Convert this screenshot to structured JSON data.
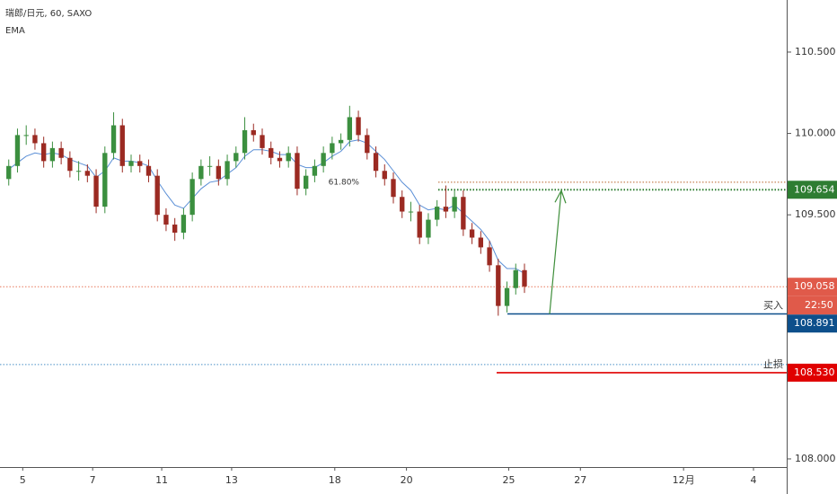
{
  "chart_data": {
    "type": "candlestick",
    "title": "瑞郎/日元, 60, SAXO",
    "indicator": "EMA",
    "x": [
      1,
      2,
      3,
      4,
      5,
      6,
      7,
      8,
      9,
      10,
      11,
      12,
      13,
      14,
      15,
      16,
      17,
      18,
      19,
      20,
      21,
      22,
      23,
      24,
      25,
      26,
      27,
      28,
      29,
      30,
      31,
      32,
      33,
      34,
      35,
      36,
      37,
      38,
      39,
      40,
      41,
      42,
      43,
      44,
      45,
      46,
      47,
      48,
      49,
      50,
      51,
      52,
      53,
      54,
      55,
      56,
      57,
      58,
      59,
      60
    ],
    "open": [
      109.72,
      109.8,
      109.99,
      109.99,
      109.94,
      109.83,
      109.91,
      109.85,
      109.77,
      109.77,
      109.74,
      109.55,
      109.88,
      110.05,
      109.8,
      109.83,
      109.8,
      109.74,
      109.5,
      109.44,
      109.39,
      109.5,
      109.72,
      109.8,
      109.8,
      109.72,
      109.83,
      109.88,
      110.02,
      109.99,
      109.91,
      109.85,
      109.83,
      109.88,
      109.66,
      109.74,
      109.8,
      109.88,
      109.94,
      109.96,
      110.1,
      109.99,
      109.88,
      109.77,
      109.72,
      109.61,
      109.52,
      109.52,
      109.36,
      109.47,
      109.55,
      109.52,
      109.61,
      109.41,
      109.36,
      109.3,
      109.19,
      108.94,
      109.05,
      109.16
    ],
    "high": [
      109.84,
      110.03,
      110.05,
      110.03,
      109.98,
      109.95,
      109.95,
      109.89,
      109.83,
      109.81,
      109.78,
      109.92,
      110.13,
      110.09,
      109.87,
      109.87,
      109.84,
      109.78,
      109.54,
      109.48,
      109.54,
      109.76,
      109.84,
      109.86,
      109.84,
      109.87,
      109.92,
      110.1,
      110.06,
      110.03,
      109.95,
      109.89,
      109.92,
      109.92,
      109.78,
      109.84,
      109.92,
      109.98,
      110.0,
      110.17,
      110.14,
      110.03,
      109.92,
      109.81,
      109.76,
      109.65,
      109.58,
      109.56,
      109.51,
      109.59,
      109.68,
      109.65,
      109.65,
      109.45,
      109.4,
      109.34,
      109.23,
      109.09,
      109.2,
      109.2
    ],
    "low": [
      109.68,
      109.76,
      109.93,
      109.9,
      109.79,
      109.79,
      109.81,
      109.73,
      109.71,
      109.7,
      109.51,
      109.51,
      109.84,
      109.76,
      109.76,
      109.76,
      109.7,
      109.46,
      109.4,
      109.34,
      109.35,
      109.46,
      109.68,
      109.74,
      109.68,
      109.68,
      109.79,
      109.84,
      109.95,
      109.87,
      109.81,
      109.79,
      109.79,
      109.62,
      109.62,
      109.7,
      109.76,
      109.84,
      109.9,
      109.92,
      109.95,
      109.84,
      109.73,
      109.68,
      109.57,
      109.48,
      109.46,
      109.32,
      109.32,
      109.43,
      109.48,
      109.48,
      109.37,
      109.32,
      109.26,
      109.15,
      108.88,
      108.9,
      109.01,
      109.02
    ],
    "close": [
      109.8,
      109.99,
      109.99,
      109.94,
      109.83,
      109.91,
      109.85,
      109.77,
      109.77,
      109.74,
      109.55,
      109.88,
      110.05,
      109.8,
      109.83,
      109.8,
      109.74,
      109.5,
      109.44,
      109.39,
      109.5,
      109.72,
      109.8,
      109.8,
      109.72,
      109.83,
      109.88,
      110.02,
      109.99,
      109.91,
      109.85,
      109.83,
      109.88,
      109.66,
      109.74,
      109.8,
      109.88,
      109.94,
      109.96,
      110.1,
      109.99,
      109.88,
      109.77,
      109.72,
      109.61,
      109.52,
      109.52,
      109.36,
      109.47,
      109.55,
      109.52,
      109.61,
      109.41,
      109.36,
      109.3,
      109.19,
      108.94,
      109.05,
      109.16,
      109.06
    ],
    "up_color": "#3b8f3f",
    "down_color": "#9b2a22",
    "ema": {
      "name": "EMA",
      "color": "#5b8fd6",
      "values": [
        109.78,
        109.82,
        109.86,
        109.88,
        109.87,
        109.88,
        109.87,
        109.84,
        109.82,
        109.8,
        109.73,
        109.77,
        109.85,
        109.83,
        109.83,
        109.82,
        109.8,
        109.71,
        109.63,
        109.56,
        109.54,
        109.6,
        109.66,
        109.7,
        109.71,
        109.75,
        109.79,
        109.86,
        109.9,
        109.9,
        109.89,
        109.87,
        109.87,
        109.81,
        109.79,
        109.79,
        109.82,
        109.86,
        109.89,
        109.95,
        109.96,
        109.94,
        109.89,
        109.84,
        109.77,
        109.7,
        109.65,
        109.56,
        109.53,
        109.54,
        109.53,
        109.56,
        109.51,
        109.46,
        109.41,
        109.34,
        109.22,
        109.17,
        109.17,
        109.14
      ]
    },
    "levels": [
      {
        "value": 109.7,
        "note": "61.80%",
        "color": "#b8642a",
        "style": "dotted"
      },
      {
        "value": 109.654,
        "color": "#2e7d32",
        "style": "dotted",
        "box": true
      },
      {
        "value": 109.058,
        "color": "#e8795a",
        "box_color": "#e05a4a",
        "time": "22:50",
        "style": "dotted",
        "box": true
      },
      {
        "value": 108.891,
        "note": "买入",
        "color": "#0d4f8b",
        "style": "solid",
        "box": true
      },
      {
        "value": 108.58,
        "color": "#4a90c8",
        "style": "dotted"
      },
      {
        "value": 108.53,
        "label": "108.530",
        "note": "止损",
        "color": "#e00000",
        "style": "solid",
        "box": true
      }
    ],
    "arrow_color": "#3e8e3a",
    "xlim": [
      0,
      90
    ],
    "ylim": [
      107.95,
      110.82
    ],
    "yticks": [
      {
        "value": 108,
        "label": "108.000"
      },
      {
        "value": 109.5,
        "label": "109.500"
      },
      {
        "value": 110,
        "label": "110.000"
      },
      {
        "value": 110.5,
        "label": "110.500"
      }
    ],
    "xticks": [
      {
        "value": 2.6,
        "label": "5"
      },
      {
        "value": 10.6,
        "label": "7"
      },
      {
        "value": 18.5,
        "label": "11"
      },
      {
        "value": 26.5,
        "label": "13"
      },
      {
        "value": 38.3,
        "label": "18"
      },
      {
        "value": 46.5,
        "label": "20"
      },
      {
        "value": 58.2,
        "label": "25"
      },
      {
        "value": 66.4,
        "label": "27"
      },
      {
        "value": 78.2,
        "label": "12月"
      },
      {
        "value": 86.2,
        "label": "4"
      }
    ]
  }
}
